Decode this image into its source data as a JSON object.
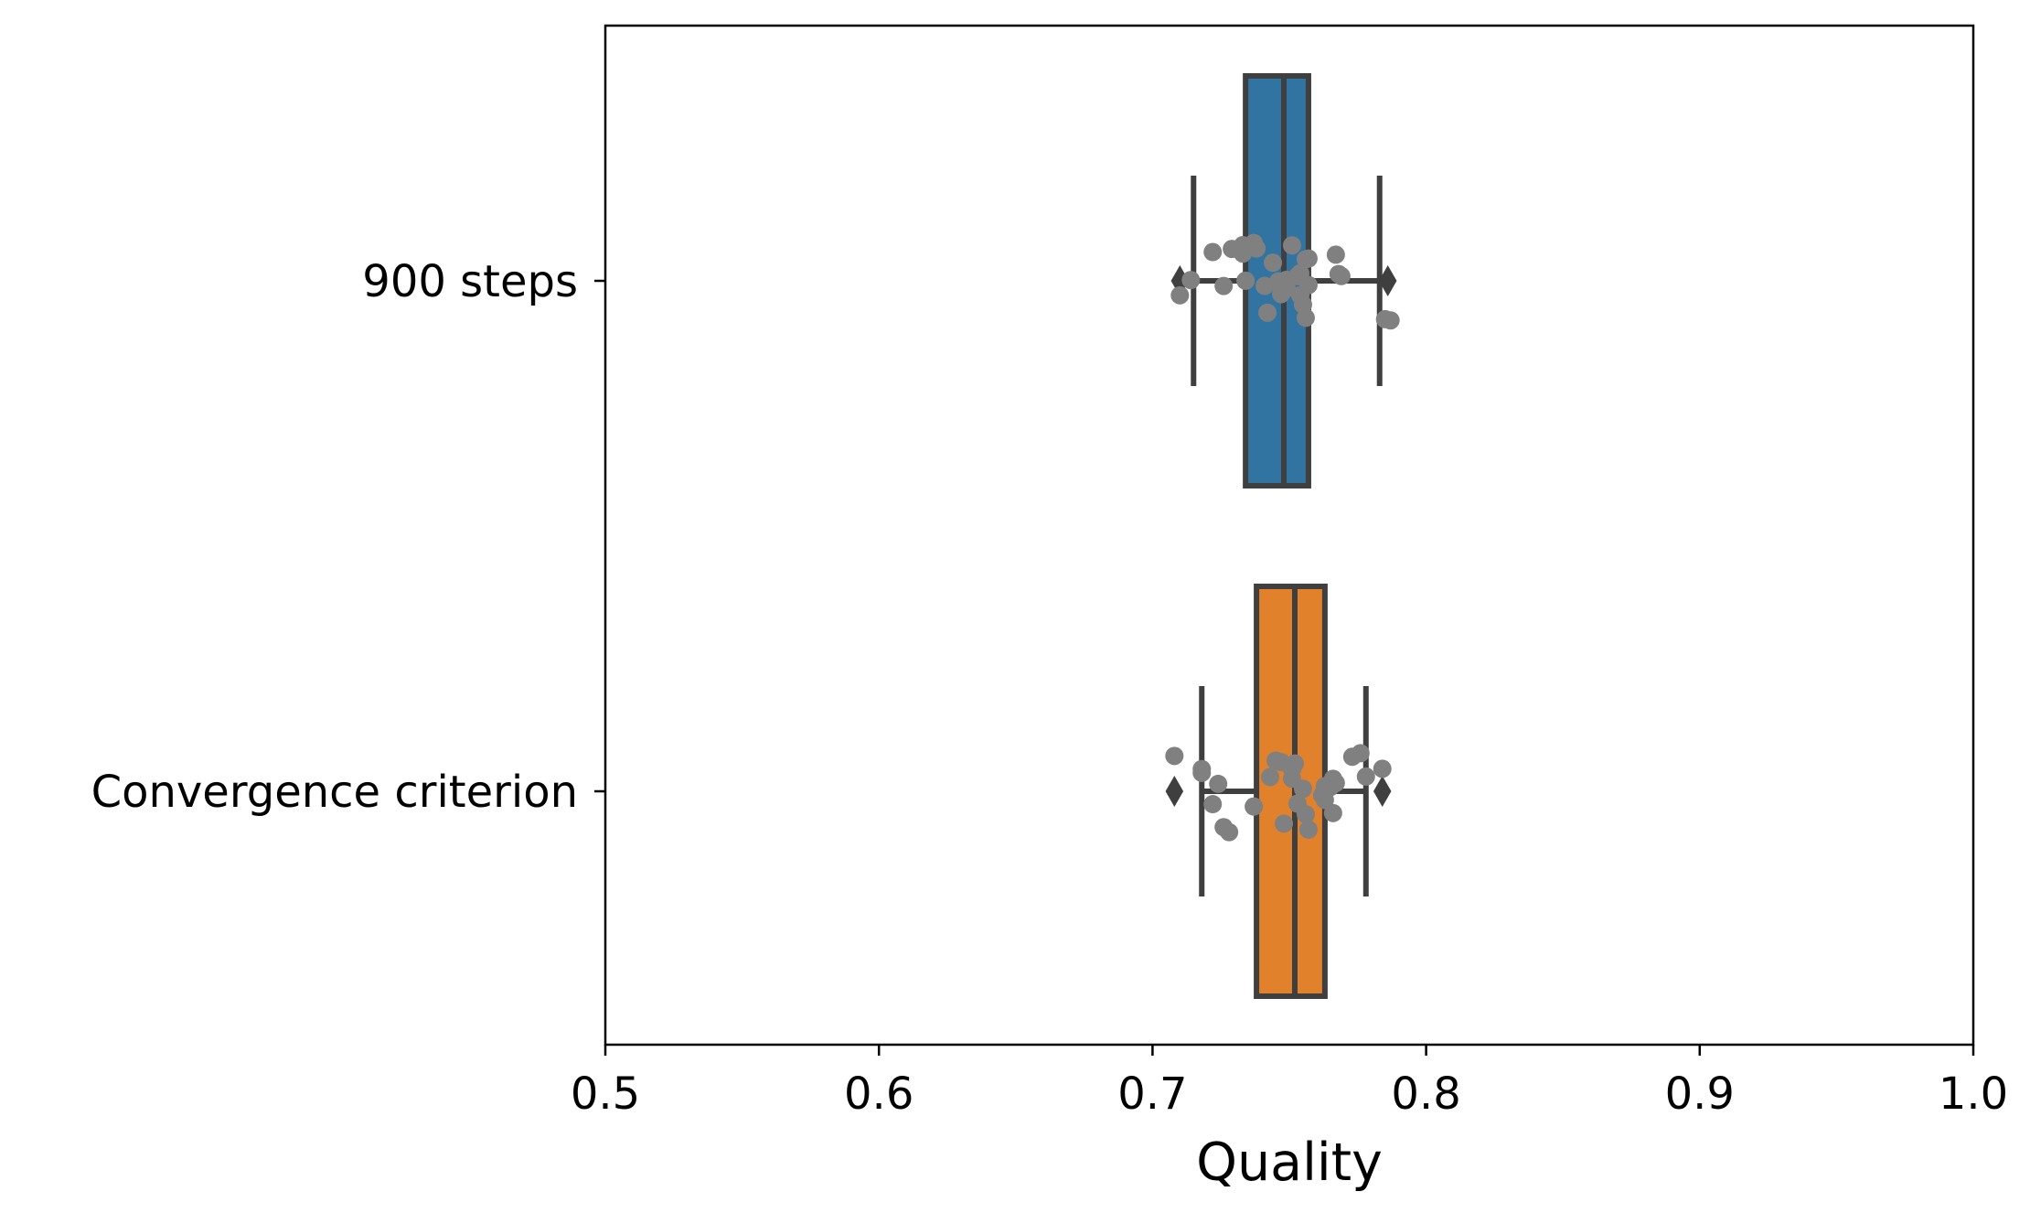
{
  "chart_data": {
    "type": "box",
    "orientation": "horizontal",
    "title": "",
    "xlabel": "Quality",
    "ylabel": "",
    "xlim": [
      0.5,
      1.0
    ],
    "xticks": [
      "0.5",
      "0.6",
      "0.7",
      "0.8",
      "0.9",
      "1.0"
    ],
    "grid": false,
    "categories": [
      "900 steps",
      "Convergence criterion"
    ],
    "colors": {
      "box_1": "#3274a1",
      "box_2": "#e1812c",
      "edge": "#3f3f3f",
      "points": "#808080"
    },
    "boxes": [
      {
        "label": "900 steps",
        "q1": 0.734,
        "median": 0.748,
        "q3": 0.757,
        "whisker_low": 0.715,
        "whisker_high": 0.783,
        "outliers": [
          0.71,
          0.786
        ],
        "points": [
          0.714,
          0.726,
          0.738,
          0.756,
          0.769,
          0.746,
          0.751,
          0.742,
          0.749,
          0.754,
          0.744,
          0.755,
          0.747,
          0.733,
          0.734,
          0.757,
          0.71,
          0.722,
          0.741,
          0.749,
          0.733,
          0.737,
          0.756,
          0.787,
          0.729,
          0.753,
          0.785,
          0.767,
          0.768,
          0.757,
          0.754
        ]
      },
      {
        "label": "Convergence criterion",
        "q1": 0.738,
        "median": 0.752,
        "q3": 0.763,
        "whisker_low": 0.718,
        "whisker_high": 0.778,
        "outliers": [
          0.708,
          0.784
        ],
        "points": [
          0.718,
          0.752,
          0.728,
          0.763,
          0.784,
          0.762,
          0.743,
          0.747,
          0.756,
          0.766,
          0.751,
          0.708,
          0.726,
          0.751,
          0.748,
          0.755,
          0.718,
          0.763,
          0.767,
          0.766,
          0.722,
          0.745,
          0.751,
          0.765,
          0.773,
          0.776,
          0.724,
          0.737,
          0.753,
          0.757,
          0.778,
          0.763
        ]
      }
    ]
  }
}
